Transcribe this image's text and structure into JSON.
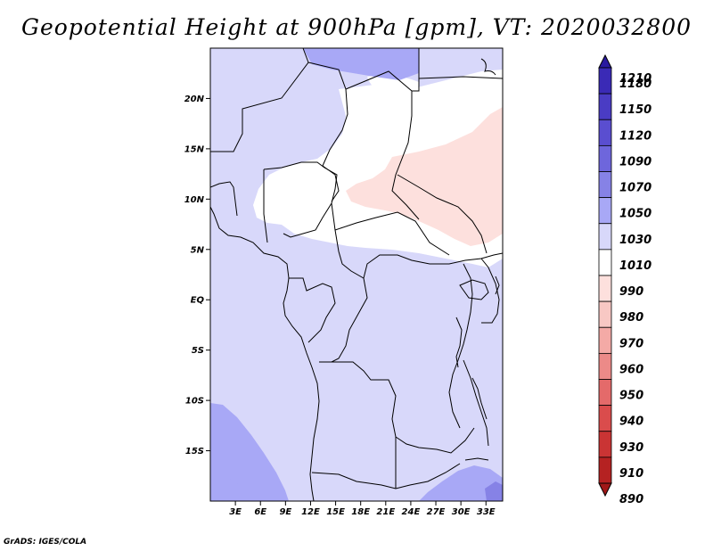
{
  "title": "Geopotential Height at 900hPa [gpm], VT: 2020032800",
  "credit": "GrADS: IGES/COLA",
  "map": {
    "lon_range": [
      0,
      35
    ],
    "lat_range": [
      -20,
      25
    ],
    "lat_ticks": [
      {
        "value": 20,
        "label": "20N"
      },
      {
        "value": 15,
        "label": "15N"
      },
      {
        "value": 10,
        "label": "10N"
      },
      {
        "value": 5,
        "label": "5N"
      },
      {
        "value": 0,
        "label": "EQ"
      },
      {
        "value": -5,
        "label": "5S"
      },
      {
        "value": -10,
        "label": "10S"
      },
      {
        "value": -15,
        "label": "15S"
      }
    ],
    "lon_ticks": [
      {
        "value": 3,
        "label": "3E"
      },
      {
        "value": 6,
        "label": "6E"
      },
      {
        "value": 9,
        "label": "9E"
      },
      {
        "value": 12,
        "label": "12E"
      },
      {
        "value": 15,
        "label": "15E"
      },
      {
        "value": 18,
        "label": "18E"
      },
      {
        "value": 21,
        "label": "21E"
      },
      {
        "value": 24,
        "label": "24E"
      },
      {
        "value": 27,
        "label": "27E"
      },
      {
        "value": 30,
        "label": "30E"
      },
      {
        "value": 33,
        "label": "33E"
      }
    ],
    "field_classes": [
      {
        "name": "1030-1050",
        "color": "#a8a8f6"
      },
      {
        "name": "1010-1030",
        "color": "#d8d8fa"
      },
      {
        "name": "990-1010",
        "color": "#ffffff"
      },
      {
        "name": "980-990",
        "color": "#fde0dd"
      }
    ]
  },
  "colorbar": {
    "levels": [
      "1210",
      "1180",
      "1150",
      "1120",
      "1090",
      "1070",
      "1050",
      "1030",
      "1010",
      "990",
      "980",
      "970",
      "960",
      "950",
      "940",
      "930",
      "910",
      "890"
    ],
    "colors": [
      "#2a1aa0",
      "#3a2ab6",
      "#4a3cc4",
      "#5a4ed0",
      "#6e66dc",
      "#8682e6",
      "#a8a8f6",
      "#d8d8fa",
      "#ffffff",
      "#fde0dd",
      "#f8c8c4",
      "#f4aaa6",
      "#ec8a88",
      "#e46a6a",
      "#da4c4c",
      "#ca3434",
      "#b52222",
      "#a01818"
    ]
  }
}
